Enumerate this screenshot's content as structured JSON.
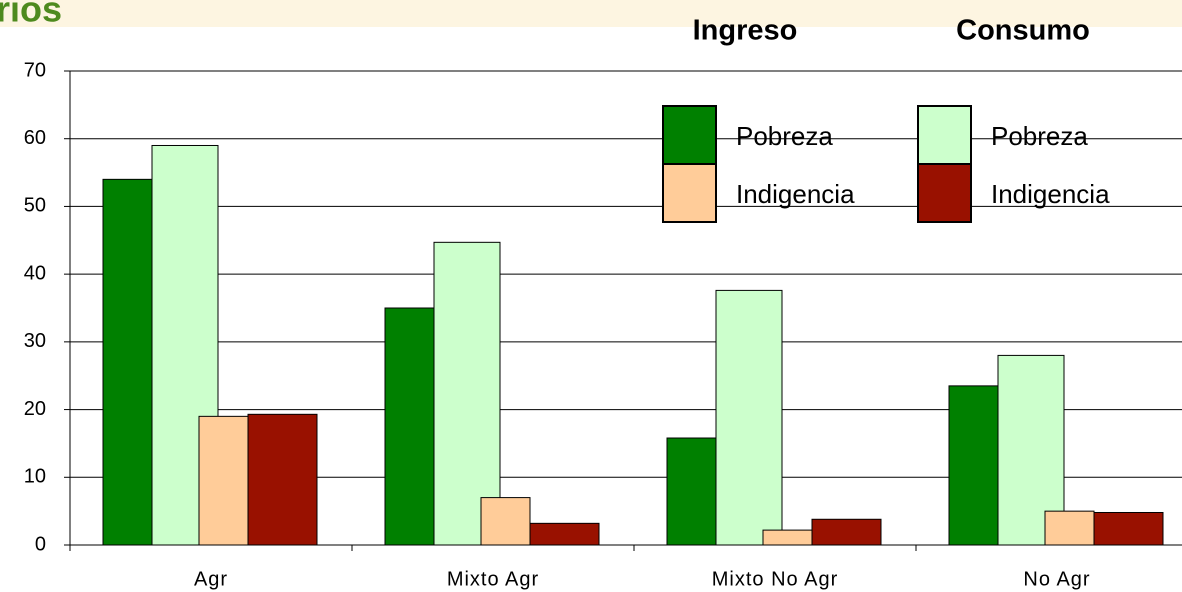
{
  "chart_data": {
    "type": "bar",
    "title": "rios",
    "legend_groups": [
      "Ingreso",
      "Consumo"
    ],
    "categories": [
      "Agr",
      "Mixto Agr",
      "Mixto No Agr",
      "No Agr"
    ],
    "series": [
      {
        "name": "Pobreza",
        "color": "#008000",
        "values": [
          54,
          35,
          15.8,
          23.5
        ]
      },
      {
        "name": "Pobreza",
        "color": "#ccffcc",
        "values": [
          59,
          44.7,
          37.6,
          28
        ]
      },
      {
        "name": "Indigencia",
        "color": "#ffcc99",
        "values": [
          19,
          7,
          2.2,
          5
        ]
      },
      {
        "name": "Indigencia",
        "color": "#991100",
        "values": [
          19.3,
          3.2,
          3.8,
          4.8
        ]
      }
    ],
    "ylim": [
      0,
      70
    ],
    "yticks": [
      0,
      10,
      20,
      30,
      40,
      50,
      60,
      70
    ],
    "grid": true
  }
}
